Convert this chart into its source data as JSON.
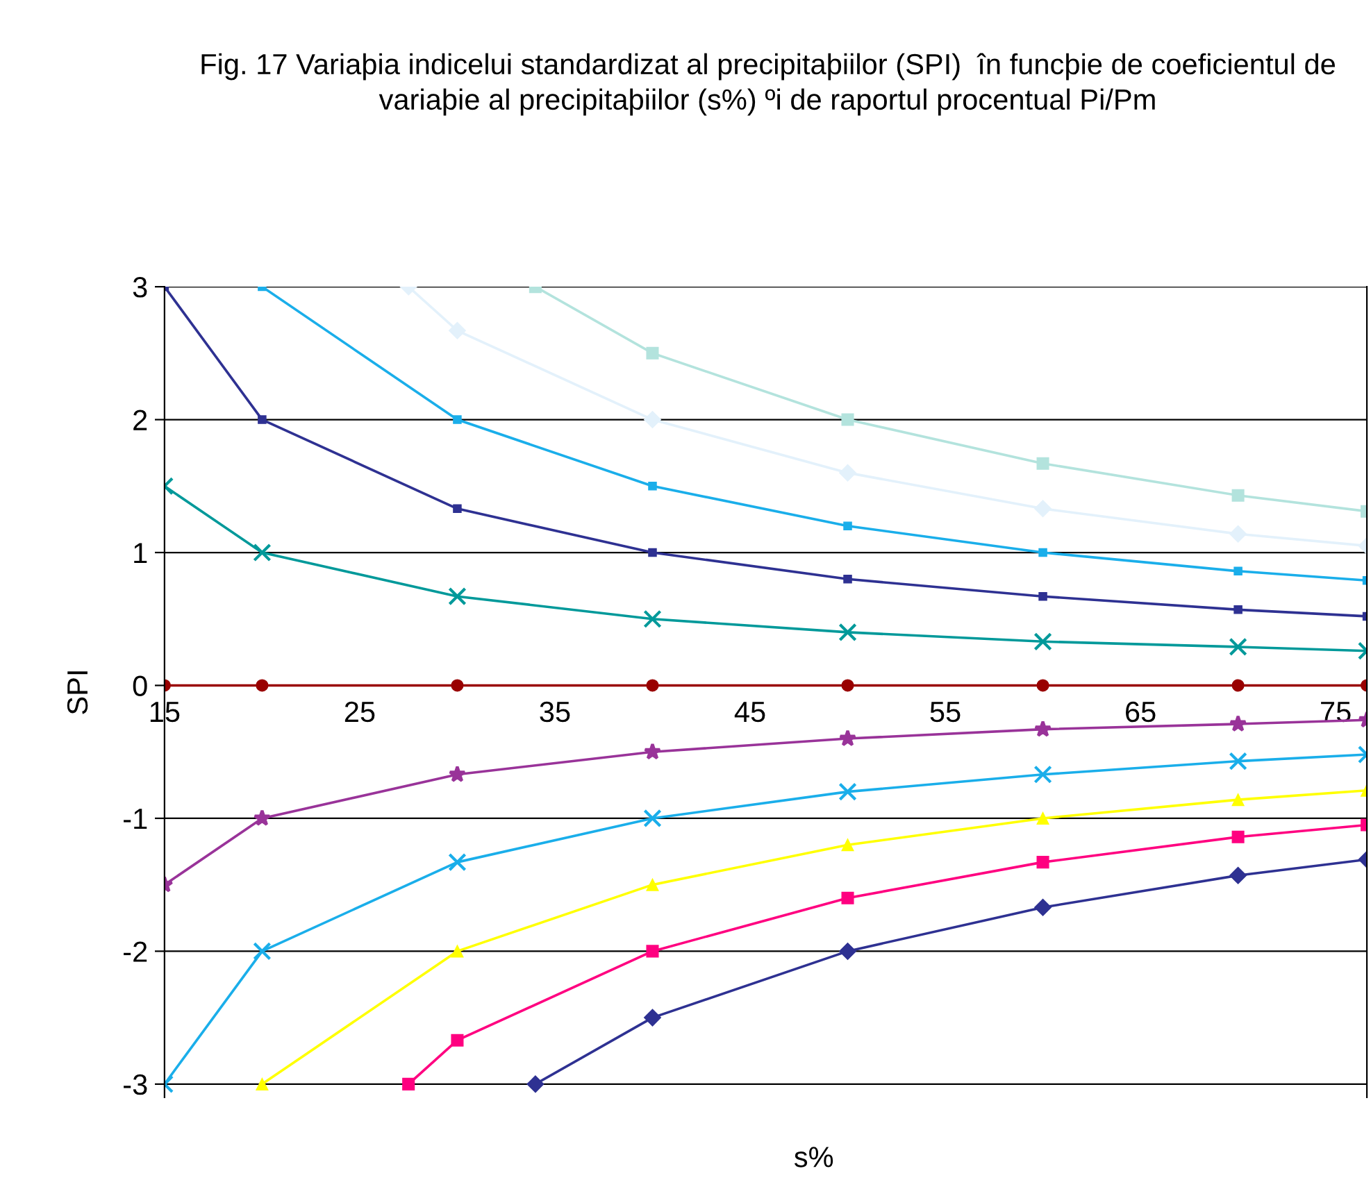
{
  "chart_data": {
    "type": "line",
    "title": "Fig. 17 Variaþia indicelui standardizat al precipitaþiilor (SPI)  în funcþie de coeficientul de variaþie al precipitaþiilor (s%) ºi de raportul procentual Pi/Pm",
    "xlabel": "s%",
    "ylabel": "SPI",
    "xlim": [
      15,
      76.6
    ],
    "xticks": [
      15,
      25,
      35,
      45,
      55,
      65,
      75
    ],
    "ylim": [
      -3.1,
      3
    ],
    "yticks": [
      -3,
      -2,
      -1,
      0,
      1,
      2,
      3
    ],
    "grid": "y",
    "legend": false,
    "series": [
      {
        "color": "#b3e3dd",
        "marker": "square",
        "x": [
          34,
          40,
          50,
          60,
          70,
          76.6
        ],
        "values": [
          3,
          2.5,
          2,
          1.67,
          1.43,
          1.31
        ]
      },
      {
        "color": "#e3f1fb",
        "marker": "diamond",
        "x": [
          27.5,
          30,
          40,
          50,
          60,
          70,
          76.6
        ],
        "values": [
          3,
          2.67,
          2,
          1.6,
          1.33,
          1.14,
          1.05
        ]
      },
      {
        "color": "#1aaeea",
        "marker": "square",
        "x": [
          20,
          30,
          40,
          50,
          60,
          70,
          76.6
        ],
        "values": [
          3,
          2,
          1.5,
          1.2,
          1.0,
          0.86,
          0.79
        ]
      },
      {
        "color": "#2e3192",
        "marker": "square",
        "x": [
          15,
          20,
          30,
          40,
          50,
          60,
          70,
          76.6
        ],
        "values": [
          3,
          2,
          1.33,
          1,
          0.8,
          0.67,
          0.57,
          0.52
        ]
      },
      {
        "color": "#00999a",
        "marker": "cross",
        "x": [
          15,
          20,
          30,
          40,
          50,
          60,
          70,
          76.6
        ],
        "values": [
          1.5,
          1,
          0.67,
          0.5,
          0.4,
          0.33,
          0.29,
          0.26
        ]
      },
      {
        "color": "#990000",
        "marker": "circle",
        "x": [
          15,
          20,
          30,
          40,
          50,
          60,
          70,
          76.6
        ],
        "values": [
          0,
          0,
          0,
          0,
          0,
          0,
          0,
          0
        ]
      },
      {
        "color": "#993399",
        "marker": "star",
        "x": [
          15,
          20,
          30,
          40,
          50,
          60,
          70,
          76.6
        ],
        "values": [
          -1.5,
          -1,
          -0.67,
          -0.5,
          -0.4,
          -0.33,
          -0.29,
          -0.26
        ]
      },
      {
        "color": "#1aaeea",
        "marker": "cross",
        "x": [
          15,
          20,
          30,
          40,
          50,
          60,
          70,
          76.6
        ],
        "values": [
          -3,
          -2,
          -1.33,
          -1,
          -0.8,
          -0.67,
          -0.57,
          -0.52
        ]
      },
      {
        "color": "#ffff00",
        "marker": "triangle",
        "x": [
          20,
          30,
          40,
          50,
          60,
          70,
          76.6
        ],
        "values": [
          -3,
          -2,
          -1.5,
          -1.2,
          -1.0,
          -0.86,
          -0.79
        ]
      },
      {
        "color": "#ff0080",
        "marker": "square",
        "x": [
          27.5,
          30,
          40,
          50,
          60,
          70,
          76.6
        ],
        "values": [
          -3,
          -2.67,
          -2,
          -1.6,
          -1.33,
          -1.14,
          -1.05
        ]
      },
      {
        "color": "#2e3192",
        "marker": "diamond",
        "x": [
          34,
          40,
          50,
          60,
          70,
          76.6
        ],
        "values": [
          -3,
          -2.5,
          -2,
          -1.67,
          -1.43,
          -1.31
        ]
      }
    ]
  }
}
